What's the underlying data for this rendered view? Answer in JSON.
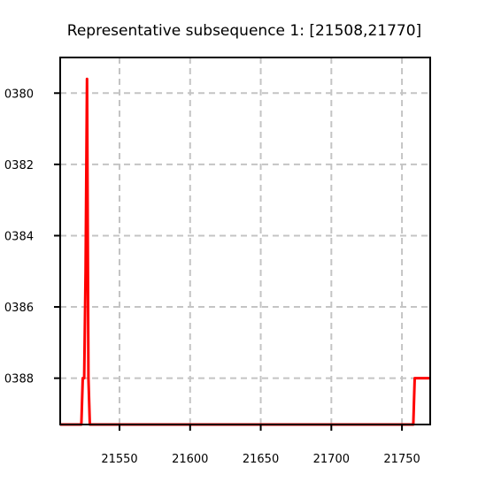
{
  "chart_data": {
    "type": "line",
    "title": "Representative subsequence 1: [21508,21770]",
    "xlabel": "",
    "ylabel": "",
    "xlim": [
      21508,
      21770
    ],
    "ylim": [
      -0.03893,
      -0.0379
    ],
    "y_inverted": true,
    "grid": true,
    "grid_style": "dashed",
    "legend": "none",
    "x_ticks": [
      21550,
      21600,
      21650,
      21700,
      21750
    ],
    "x_tick_labels": [
      "21550",
      "21600",
      "21650",
      "21700",
      "21750"
    ],
    "y_ticks": [
      -0.038,
      -0.0382,
      -0.0384,
      -0.0386,
      -0.0388
    ],
    "y_tick_labels": [
      "0380",
      "0382",
      "0384",
      "0386",
      "0388"
    ],
    "series": [
      {
        "color": "#ff0000",
        "x": [
          21508,
          21523,
          21524,
          21525,
          21526,
          21527,
          21528,
          21529,
          21530,
          21600,
          21700,
          21758,
          21759,
          21760,
          21770
        ],
        "y": [
          -0.03893,
          -0.03893,
          -0.0388,
          -0.0388,
          -0.0385,
          -0.03796,
          -0.0388,
          -0.03893,
          -0.03893,
          -0.03893,
          -0.03893,
          -0.03893,
          -0.0388,
          -0.0388,
          -0.0388
        ]
      }
    ]
  },
  "colors": {
    "axis": "#000000",
    "grid": "#c4c4c4",
    "line": "#ff0000",
    "background": "#ffffff"
  }
}
